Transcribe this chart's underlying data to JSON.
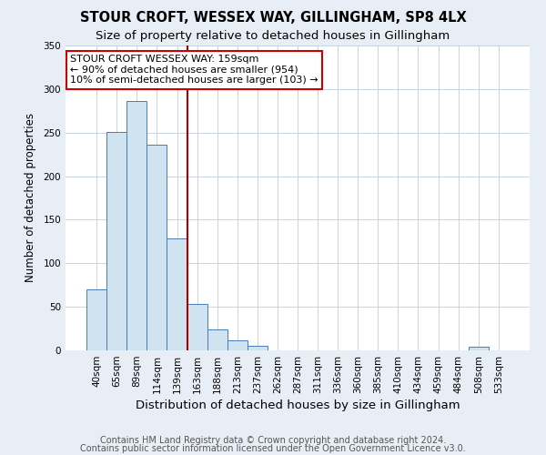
{
  "title": "STOUR CROFT, WESSEX WAY, GILLINGHAM, SP8 4LX",
  "subtitle": "Size of property relative to detached houses in Gillingham",
  "xlabel": "Distribution of detached houses by size in Gillingham",
  "ylabel": "Number of detached properties",
  "categories": [
    "40sqm",
    "65sqm",
    "89sqm",
    "114sqm",
    "139sqm",
    "163sqm",
    "188sqm",
    "213sqm",
    "237sqm",
    "262sqm",
    "287sqm",
    "311sqm",
    "336sqm",
    "360sqm",
    "385sqm",
    "410sqm",
    "434sqm",
    "459sqm",
    "484sqm",
    "508sqm",
    "533sqm"
  ],
  "values": [
    70,
    251,
    286,
    236,
    128,
    53,
    24,
    12,
    5,
    0,
    0,
    0,
    0,
    0,
    0,
    0,
    0,
    0,
    0,
    4,
    0
  ],
  "bar_color": "#d0e3f0",
  "bar_edge_color": "#4a7ab5",
  "vline_x": 4.5,
  "vline_color": "#aa0000",
  "annotation_text": "STOUR CROFT WESSEX WAY: 159sqm\n← 90% of detached houses are smaller (954)\n10% of semi-detached houses are larger (103) →",
  "annotation_box_color": "white",
  "annotation_box_edge": "#cc0000",
  "ylim": [
    0,
    350
  ],
  "yticks": [
    0,
    50,
    100,
    150,
    200,
    250,
    300,
    350
  ],
  "fig_background_color": "#e8eef5",
  "plot_background_color": "white",
  "grid_color": "#c8d4e0",
  "footer1": "Contains HM Land Registry data © Crown copyright and database right 2024.",
  "footer2": "Contains public sector information licensed under the Open Government Licence v3.0.",
  "title_fontsize": 10.5,
  "subtitle_fontsize": 9.5,
  "xlabel_fontsize": 9.5,
  "ylabel_fontsize": 8.5,
  "tick_fontsize": 7.5,
  "annotation_fontsize": 8.0,
  "footer_fontsize": 7.0
}
